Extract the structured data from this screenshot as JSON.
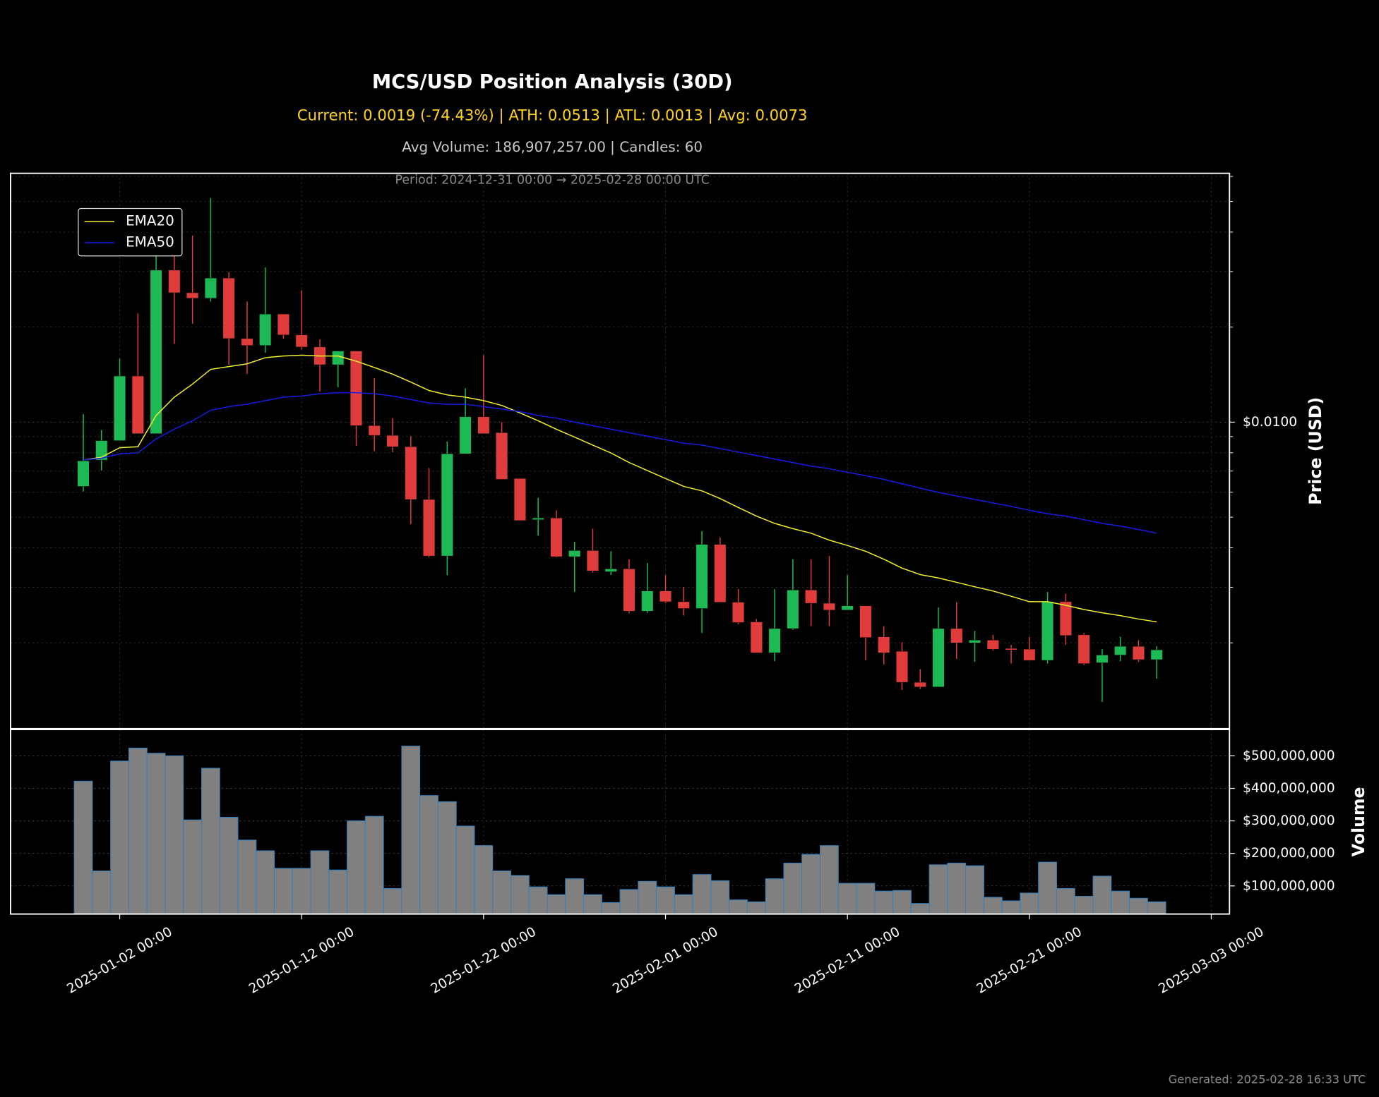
{
  "chart_data": [
    {
      "type": "candlestick",
      "title": "MCS/USD Position Analysis (30D)",
      "subtitle": "Current: 0.0019 (-74.43%) | ATH: 0.0513 | ATL: 0.0013 | Avg: 0.0073",
      "stats": "Avg Volume: 186,907,257.00 | Candles: 60",
      "period": "Period: 2024-12-31 00:00 → 2025-02-28 00:00 UTC",
      "y_label": "Price (USD)",
      "log_scale": true,
      "grid": true,
      "legend_loc": "upper left",
      "up_color": "#1db954",
      "down_color": "#e03c3c",
      "xlim": [
        "2024-12-27 00:00",
        "2025-03-04 00:00"
      ],
      "xticks": [
        "2025-01-02 00:00",
        "2025-01-12 00:00",
        "2025-01-22 00:00",
        "2025-02-01 00:00",
        "2025-02-11 00:00",
        "2025-02-21 00:00",
        "2025-03-03 00:00"
      ],
      "ylim": [
        0.00107,
        0.0614
      ],
      "yticks": [
        {
          "value": 0.01,
          "label": "$0.0100"
        }
      ],
      "yminorticks": [
        0.002,
        0.003,
        0.004,
        0.005,
        0.006,
        0.007,
        0.008,
        0.009,
        0.02,
        0.03,
        0.04,
        0.05,
        0.06
      ],
      "x": [
        "2024-12-31 00:00",
        "2025-01-01 00:00",
        "2025-01-02 00:00",
        "2025-01-03 00:00",
        "2025-01-04 00:00",
        "2025-01-05 00:00",
        "2025-01-06 00:00",
        "2025-01-07 00:00",
        "2025-01-08 00:00",
        "2025-01-09 00:00",
        "2025-01-10 00:00",
        "2025-01-11 00:00",
        "2025-01-12 00:00",
        "2025-01-13 00:00",
        "2025-01-14 00:00",
        "2025-01-15 00:00",
        "2025-01-16 00:00",
        "2025-01-17 00:00",
        "2025-01-18 00:00",
        "2025-01-19 00:00",
        "2025-01-20 00:00",
        "2025-01-21 00:00",
        "2025-01-22 00:00",
        "2025-01-23 00:00",
        "2025-01-24 00:00",
        "2025-01-25 00:00",
        "2025-01-26 00:00",
        "2025-01-27 00:00",
        "2025-01-28 00:00",
        "2025-01-29 00:00",
        "2025-01-30 00:00",
        "2025-01-31 00:00",
        "2025-02-01 00:00",
        "2025-02-02 00:00",
        "2025-02-03 00:00",
        "2025-02-04 00:00",
        "2025-02-05 00:00",
        "2025-02-06 00:00",
        "2025-02-07 00:00",
        "2025-02-08 00:00",
        "2025-02-09 00:00",
        "2025-02-10 00:00",
        "2025-02-11 00:00",
        "2025-02-12 00:00",
        "2025-02-13 00:00",
        "2025-02-14 00:00",
        "2025-02-15 00:00",
        "2025-02-16 00:00",
        "2025-02-17 00:00",
        "2025-02-18 00:00",
        "2025-02-19 00:00",
        "2025-02-20 00:00",
        "2025-02-21 00:00",
        "2025-02-22 00:00",
        "2025-02-23 00:00",
        "2025-02-24 00:00",
        "2025-02-25 00:00",
        "2025-02-26 00:00",
        "2025-02-27 00:00",
        "2025-02-28 00:00"
      ],
      "open": [
        0.00626,
        0.00759,
        0.00874,
        0.014,
        0.0092,
        0.0303,
        0.0257,
        0.0247,
        0.0286,
        0.0184,
        0.0175,
        0.022,
        0.0189,
        0.0173,
        0.0152,
        0.0168,
        0.00975,
        0.00908,
        0.00836,
        0.00569,
        0.00377,
        0.00794,
        0.0104,
        0.00926,
        0.00663,
        0.00491,
        0.00497,
        0.00375,
        0.00392,
        0.00336,
        0.00343,
        0.00252,
        0.00292,
        0.0027,
        0.00257,
        0.0041,
        0.00269,
        0.00233,
        0.00186,
        0.00222,
        0.00294,
        0.00267,
        0.00254,
        0.00262,
        0.00209,
        0.00188,
        0.0015,
        0.00145,
        0.00222,
        0.002,
        0.00204,
        0.00192,
        0.00191,
        0.00176,
        0.0027,
        0.00212,
        0.00173,
        0.00183,
        0.00195,
        0.00177
      ],
      "high": [
        0.0106,
        0.00944,
        0.0159,
        0.0221,
        0.0338,
        0.0338,
        0.039,
        0.0513,
        0.0299,
        0.0241,
        0.0309,
        0.022,
        0.0262,
        0.0183,
        0.0168,
        0.0168,
        0.0138,
        0.0103,
        0.00903,
        0.00716,
        0.00869,
        0.0128,
        0.0163,
        0.01,
        0.00663,
        0.00576,
        0.00526,
        0.00418,
        0.0046,
        0.0039,
        0.00368,
        0.00358,
        0.00328,
        0.00301,
        0.00452,
        0.00432,
        0.00296,
        0.00238,
        0.00296,
        0.00368,
        0.00368,
        0.00377,
        0.00328,
        0.00262,
        0.00226,
        0.00201,
        0.00165,
        0.00259,
        0.00269,
        0.00218,
        0.00212,
        0.00197,
        0.00209,
        0.0029,
        0.00286,
        0.00215,
        0.00191,
        0.00209,
        0.00204,
        0.00195
      ],
      "low": [
        0.00603,
        0.00703,
        0.00874,
        0.0092,
        0.0092,
        0.0177,
        0.0205,
        0.0241,
        0.0152,
        0.0142,
        0.0166,
        0.0184,
        0.017,
        0.0125,
        0.0129,
        0.00841,
        0.00809,
        0.00804,
        0.00475,
        0.00373,
        0.00328,
        0.00794,
        0.0092,
        0.00659,
        0.00488,
        0.00437,
        0.00373,
        0.0029,
        0.00334,
        0.00328,
        0.00248,
        0.00249,
        0.00267,
        0.00244,
        0.00215,
        0.00269,
        0.00229,
        0.00186,
        0.00175,
        0.0022,
        0.00226,
        0.00226,
        0.00254,
        0.00176,
        0.00171,
        0.00142,
        0.00143,
        0.00145,
        0.00178,
        0.00174,
        0.00189,
        0.00172,
        0.00176,
        0.00172,
        0.00197,
        0.0017,
        0.0013,
        0.00175,
        0.00174,
        0.00154
      ],
      "close": [
        0.00754,
        0.00874,
        0.014,
        0.0092,
        0.0303,
        0.0257,
        0.0247,
        0.0286,
        0.0184,
        0.0175,
        0.022,
        0.0189,
        0.0173,
        0.0152,
        0.0168,
        0.00975,
        0.00908,
        0.00836,
        0.00569,
        0.00377,
        0.00794,
        0.0104,
        0.0092,
        0.00659,
        0.00488,
        0.00497,
        0.00375,
        0.00392,
        0.00338,
        0.00343,
        0.00252,
        0.00292,
        0.0027,
        0.00257,
        0.0041,
        0.00269,
        0.00232,
        0.00186,
        0.00222,
        0.00294,
        0.00267,
        0.00254,
        0.00262,
        0.00208,
        0.00186,
        0.0015,
        0.00145,
        0.00222,
        0.002,
        0.00204,
        0.00191,
        0.0019,
        0.00176,
        0.0027,
        0.00211,
        0.00172,
        0.00183,
        0.00195,
        0.00177,
        0.0019
      ],
      "series": [
        {
          "name": "EMA20",
          "color": "#f2ef2a",
          "values": [
            0.00759,
            0.00774,
            0.0083,
            0.00836,
            0.0105,
            0.012,
            0.0132,
            0.0147,
            0.015,
            0.0153,
            0.016,
            0.0162,
            0.0163,
            0.0162,
            0.0162,
            0.0156,
            0.0149,
            0.0142,
            0.0134,
            0.0126,
            0.0122,
            0.012,
            0.0117,
            0.0113,
            0.0107,
            0.0101,
            0.0095,
            0.00897,
            0.00846,
            0.00799,
            0.00745,
            0.00703,
            0.00663,
            0.00626,
            0.00606,
            0.00573,
            0.00537,
            0.00504,
            0.00478,
            0.0046,
            0.00445,
            0.00423,
            0.00407,
            0.0039,
            0.00368,
            0.00345,
            0.00329,
            0.00321,
            0.00311,
            0.00301,
            0.00292,
            0.00281,
            0.0027,
            0.0027,
            0.00263,
            0.00255,
            0.00249,
            0.00244,
            0.00238,
            0.00233
          ]
        },
        {
          "name": "EMA50",
          "color": "#1a1ae6",
          "values": [
            0.00759,
            0.00769,
            0.00794,
            0.00799,
            0.00885,
            0.0095,
            0.0101,
            0.0109,
            0.0112,
            0.0114,
            0.0117,
            0.012,
            0.0121,
            0.0123,
            0.0124,
            0.0124,
            0.0123,
            0.0121,
            0.0118,
            0.0115,
            0.0114,
            0.0114,
            0.0112,
            0.011,
            0.0108,
            0.0105,
            0.0103,
            0.01,
            0.00975,
            0.0095,
            0.00926,
            0.00903,
            0.0088,
            0.00858,
            0.00846,
            0.00825,
            0.00804,
            0.00784,
            0.00764,
            0.00745,
            0.00726,
            0.00712,
            0.00694,
            0.00677,
            0.00659,
            0.00638,
            0.00618,
            0.00599,
            0.00584,
            0.00569,
            0.00555,
            0.00541,
            0.00526,
            0.00513,
            0.00504,
            0.00491,
            0.00478,
            0.00469,
            0.00457,
            0.00445
          ]
        }
      ]
    },
    {
      "type": "bar",
      "y_label": "Volume",
      "grid": true,
      "color": "#808080",
      "edge_color": "#2f7fc1",
      "xlim": [
        "2024-12-27 00:00",
        "2025-03-04 00:00"
      ],
      "xticks": [
        "2025-01-02 00:00",
        "2025-01-12 00:00",
        "2025-01-22 00:00",
        "2025-02-01 00:00",
        "2025-02-11 00:00",
        "2025-02-21 00:00",
        "2025-03-03 00:00"
      ],
      "ylim": [
        13500000,
        581000000
      ],
      "yticks": [
        {
          "value": 100000000,
          "label": "$100,000,000"
        },
        {
          "value": 200000000,
          "label": "$200,000,000"
        },
        {
          "value": 300000000,
          "label": "$300,000,000"
        },
        {
          "value": 400000000,
          "label": "$400,000,000"
        },
        {
          "value": 500000000,
          "label": "$500,000,000"
        }
      ],
      "x": [
        "2024-12-31 00:00",
        "2025-01-01 00:00",
        "2025-01-02 00:00",
        "2025-01-03 00:00",
        "2025-01-04 00:00",
        "2025-01-05 00:00",
        "2025-01-06 00:00",
        "2025-01-07 00:00",
        "2025-01-08 00:00",
        "2025-01-09 00:00",
        "2025-01-10 00:00",
        "2025-01-11 00:00",
        "2025-01-12 00:00",
        "2025-01-13 00:00",
        "2025-01-14 00:00",
        "2025-01-15 00:00",
        "2025-01-16 00:00",
        "2025-01-17 00:00",
        "2025-01-18 00:00",
        "2025-01-19 00:00",
        "2025-01-20 00:00",
        "2025-01-21 00:00",
        "2025-01-22 00:00",
        "2025-01-23 00:00",
        "2025-01-24 00:00",
        "2025-01-25 00:00",
        "2025-01-26 00:00",
        "2025-01-27 00:00",
        "2025-01-28 00:00",
        "2025-01-29 00:00",
        "2025-01-30 00:00",
        "2025-01-31 00:00",
        "2025-02-01 00:00",
        "2025-02-02 00:00",
        "2025-02-03 00:00",
        "2025-02-04 00:00",
        "2025-02-05 00:00",
        "2025-02-06 00:00",
        "2025-02-07 00:00",
        "2025-02-08 00:00",
        "2025-02-09 00:00",
        "2025-02-10 00:00",
        "2025-02-11 00:00",
        "2025-02-12 00:00",
        "2025-02-13 00:00",
        "2025-02-14 00:00",
        "2025-02-15 00:00",
        "2025-02-16 00:00",
        "2025-02-17 00:00",
        "2025-02-18 00:00",
        "2025-02-19 00:00",
        "2025-02-20 00:00",
        "2025-02-21 00:00",
        "2025-02-22 00:00",
        "2025-02-23 00:00",
        "2025-02-24 00:00",
        "2025-02-25 00:00",
        "2025-02-26 00:00",
        "2025-02-27 00:00",
        "2025-02-28 00:00"
      ],
      "values": [
        422000000,
        146000000,
        484000000,
        524000000,
        508000000,
        500000000,
        303000000,
        462000000,
        311000000,
        241000000,
        208000000,
        154000000,
        154000000,
        208000000,
        149000000,
        300000000,
        314000000,
        92000000,
        530000000,
        378000000,
        359000000,
        284000000,
        224000000,
        146000000,
        132000000,
        97000000,
        73000000,
        122000000,
        73000000,
        49000000,
        89000000,
        114000000,
        97000000,
        73000000,
        135000000,
        116000000,
        57000000,
        51000000,
        122000000,
        170000000,
        197000000,
        224000000,
        108000000,
        108000000,
        84000000,
        86000000,
        46000000,
        165000000,
        170000000,
        162000000,
        65000000,
        54000000,
        78000000,
        173000000,
        92000000,
        68000000,
        130000000,
        84000000,
        62000000,
        51000000
      ]
    }
  ],
  "footer": "Generated: 2025-02-28 16:33 UTC"
}
